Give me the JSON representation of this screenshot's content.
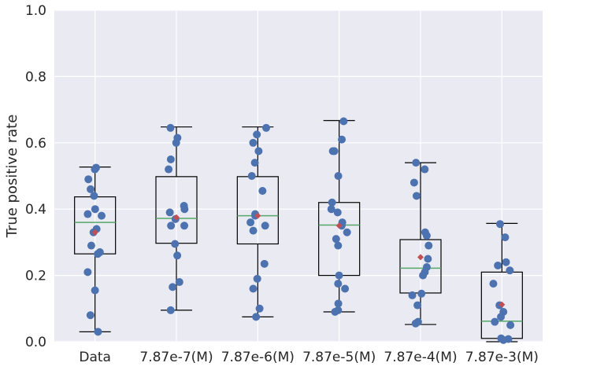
{
  "chart_data": {
    "type": "box",
    "title": "",
    "xlabel": "",
    "ylabel": "True positive rate",
    "ylim": [
      0.0,
      1.0
    ],
    "yticks": [
      0.0,
      0.2,
      0.4,
      0.6,
      0.8,
      1.0
    ],
    "ytick_labels": [
      "0.0",
      "0.2",
      "0.4",
      "0.6",
      "0.8",
      "1.0"
    ],
    "grid": true,
    "colors": {
      "background": "#EAEAF2",
      "grid": "#FFFFFF",
      "box": "#000000",
      "median": "#55A868",
      "mean": "#C44E52",
      "points": "#4C72B0"
    },
    "categories": [
      "Data",
      "7.87e-7(M)",
      "7.87e-6(M)",
      "7.87e-5(M)",
      "7.87e-4(M)",
      "7.87e-3(M)"
    ],
    "boxes": [
      {
        "label": "Data",
        "whisker_low": 0.03,
        "q1": 0.265,
        "median": 0.36,
        "q3": 0.437,
        "whisker_high": 0.527,
        "mean": 0.33,
        "points": [
          0.52,
          0.525,
          0.49,
          0.46,
          0.44,
          0.4,
          0.385,
          0.38,
          0.34,
          0.33,
          0.29,
          0.27,
          0.265,
          0.21,
          0.155,
          0.08,
          0.03
        ]
      },
      {
        "label": "7.87e-7(M)",
        "whisker_low": 0.095,
        "q1": 0.297,
        "median": 0.372,
        "q3": 0.498,
        "whisker_high": 0.648,
        "mean": 0.375,
        "points": [
          0.645,
          0.615,
          0.6,
          0.55,
          0.52,
          0.41,
          0.4,
          0.39,
          0.37,
          0.35,
          0.35,
          0.295,
          0.26,
          0.18,
          0.165,
          0.095
        ]
      },
      {
        "label": "7.87e-6(M)",
        "whisker_low": 0.075,
        "q1": 0.295,
        "median": 0.38,
        "q3": 0.498,
        "whisker_high": 0.648,
        "mean": 0.38,
        "points": [
          0.645,
          0.625,
          0.6,
          0.575,
          0.54,
          0.5,
          0.455,
          0.385,
          0.38,
          0.36,
          0.35,
          0.335,
          0.235,
          0.19,
          0.16,
          0.1,
          0.075
        ]
      },
      {
        "label": "7.87e-5(M)",
        "whisker_low": 0.09,
        "q1": 0.2,
        "median": 0.352,
        "q3": 0.42,
        "whisker_high": 0.667,
        "mean": 0.35,
        "points": [
          0.665,
          0.61,
          0.575,
          0.575,
          0.5,
          0.42,
          0.4,
          0.39,
          0.36,
          0.35,
          0.33,
          0.31,
          0.29,
          0.2,
          0.175,
          0.16,
          0.115,
          0.095,
          0.09
        ]
      },
      {
        "label": "7.87e-4(M)",
        "whisker_low": 0.052,
        "q1": 0.147,
        "median": 0.222,
        "q3": 0.308,
        "whisker_high": 0.54,
        "mean": 0.255,
        "points": [
          0.54,
          0.52,
          0.48,
          0.44,
          0.33,
          0.32,
          0.29,
          0.25,
          0.225,
          0.21,
          0.2,
          0.145,
          0.14,
          0.11,
          0.06,
          0.055
        ]
      },
      {
        "label": "7.87e-3(M)",
        "whisker_low": 0.0,
        "q1": 0.01,
        "median": 0.062,
        "q3": 0.21,
        "whisker_high": 0.357,
        "mean": 0.112,
        "points": [
          0.355,
          0.315,
          0.24,
          0.23,
          0.215,
          0.175,
          0.11,
          0.09,
          0.075,
          0.06,
          0.05,
          0.01,
          0.008,
          0.005
        ]
      }
    ]
  }
}
